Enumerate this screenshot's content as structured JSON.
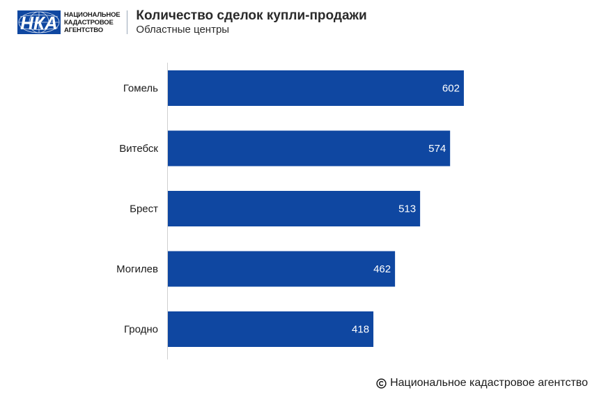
{
  "header": {
    "logo": {
      "abbr": "НКА",
      "lines": [
        "НАЦИОНАЛЬНОЕ",
        "КАДАСТРОВОЕ",
        "АГЕНТСТВО"
      ]
    },
    "title": "Количество сделок купли-продажи",
    "subtitle": "Областные центры"
  },
  "chart_data": {
    "type": "bar",
    "orientation": "horizontal",
    "categories": [
      "Гомель",
      "Витебск",
      "Брест",
      "Могилев",
      "Гродно"
    ],
    "values": [
      602,
      574,
      513,
      462,
      418
    ],
    "xlim": [
      0,
      850
    ],
    "grid": false,
    "bar_color": "#0f47a1",
    "label_color": "#ffffff"
  },
  "footer": {
    "copyright_icon": "copyright-icon",
    "text": "Национальное кадастровое агентство"
  }
}
